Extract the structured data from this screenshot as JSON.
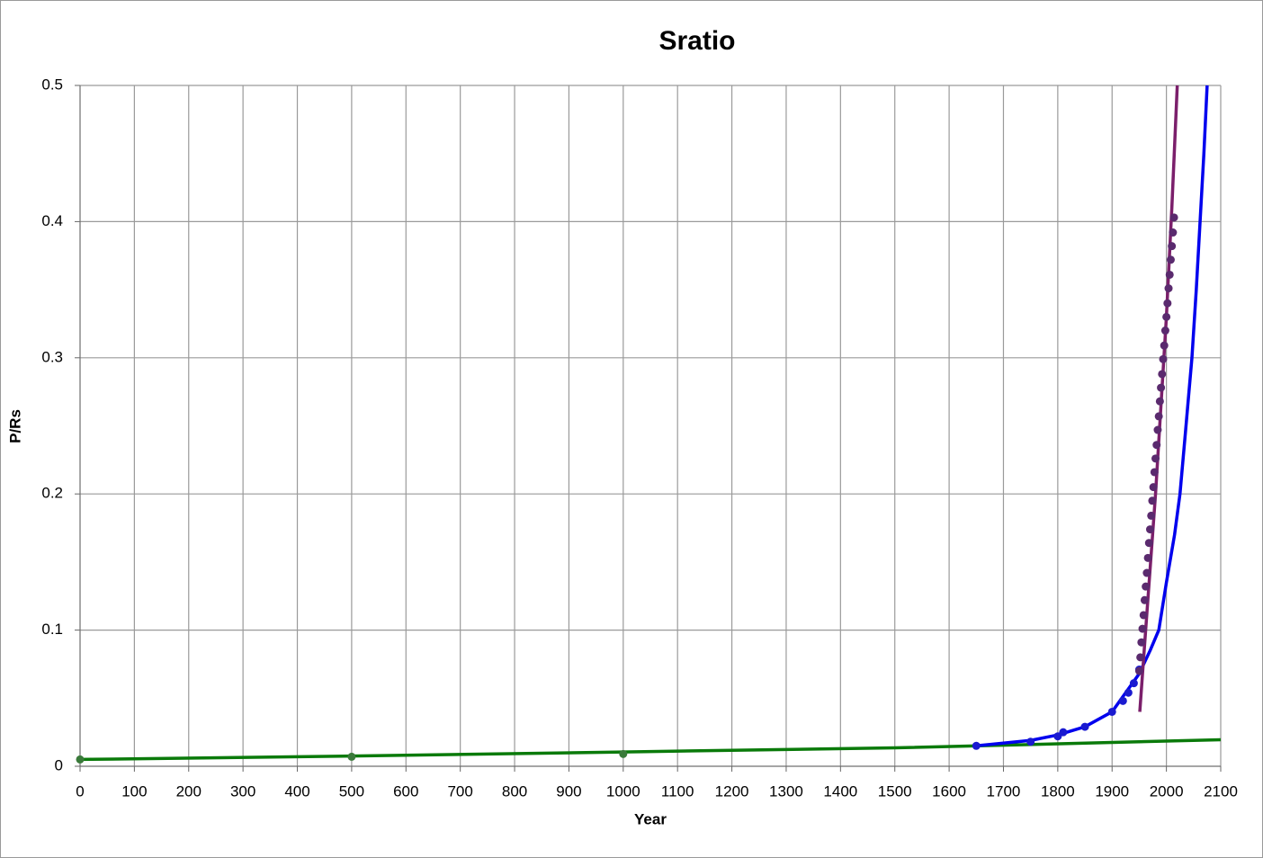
{
  "chart_data": {
    "type": "scatter",
    "title": "Sratio",
    "x_label": "Year",
    "y_label": "P/Rs",
    "xlim": [
      0,
      2100
    ],
    "xticks": [
      0,
      100,
      200,
      300,
      400,
      500,
      600,
      700,
      800,
      900,
      1000,
      1100,
      1200,
      1300,
      1400,
      1500,
      1600,
      1700,
      1800,
      1900,
      2000,
      2100
    ],
    "ylim": [
      0,
      0.5
    ],
    "yticks": [
      0,
      0.1,
      0.2,
      0.3,
      0.4,
      0.5
    ],
    "grid": true,
    "series": [
      {
        "color": "#0a7a0a",
        "mode": "line",
        "x": [
          0,
          500,
          1000,
          1500,
          2100
        ],
        "values": [
          0.005,
          0.0075,
          0.0105,
          0.0135,
          0.0195
        ]
      },
      {
        "color": "#3a7a3a",
        "mode": "markers",
        "x": [
          0,
          500,
          1000
        ],
        "values": [
          0.005,
          0.007,
          0.009
        ]
      },
      {
        "color": "#0000ee",
        "mode": "line",
        "x": [
          1650,
          1700,
          1750,
          1800,
          1850,
          1900,
          1950,
          1970,
          1986,
          2000,
          2015,
          2025,
          2035,
          2047,
          2055,
          2062,
          2069,
          2075
        ],
        "values": [
          0.015,
          0.017,
          0.019,
          0.023,
          0.029,
          0.04,
          0.068,
          0.085,
          0.1,
          0.135,
          0.17,
          0.2,
          0.245,
          0.3,
          0.35,
          0.4,
          0.45,
          0.5
        ]
      },
      {
        "color": "#1a1ad0",
        "mode": "markers",
        "x": [
          1650,
          1750,
          1800,
          1810,
          1850,
          1900,
          1920,
          1930,
          1940,
          1950
        ],
        "values": [
          0.015,
          0.018,
          0.022,
          0.025,
          0.029,
          0.04,
          0.048,
          0.054,
          0.061,
          0.071
        ]
      },
      {
        "color": "#7b1f6b",
        "mode": "line",
        "x": [
          1951,
          1960,
          1980,
          2000,
          2010,
          2020
        ],
        "values": [
          0.04,
          0.09,
          0.2,
          0.33,
          0.41,
          0.5
        ]
      },
      {
        "color": "#5a2a6e",
        "mode": "markers",
        "x": [
          1950,
          1952,
          1954,
          1956,
          1958,
          1960,
          1962,
          1964,
          1966,
          1968,
          1970,
          1972,
          1974,
          1976,
          1978,
          1980,
          1982,
          1984,
          1986,
          1988,
          1990,
          1992,
          1994,
          1996,
          1998,
          2000,
          2002,
          2004,
          2006,
          2008,
          2010,
          2012,
          2014
        ],
        "values": [
          0.07,
          0.08,
          0.091,
          0.101,
          0.111,
          0.122,
          0.132,
          0.142,
          0.153,
          0.164,
          0.174,
          0.184,
          0.195,
          0.205,
          0.216,
          0.226,
          0.236,
          0.247,
          0.257,
          0.268,
          0.278,
          0.288,
          0.299,
          0.309,
          0.32,
          0.33,
          0.34,
          0.351,
          0.361,
          0.372,
          0.382,
          0.392,
          0.403
        ]
      }
    ]
  }
}
